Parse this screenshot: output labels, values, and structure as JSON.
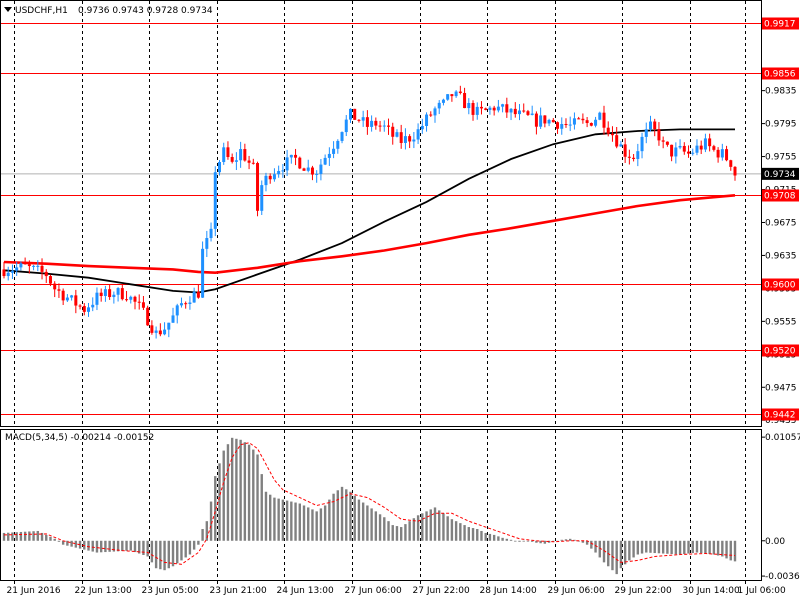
{
  "header": {
    "symbol": "USDCHF,H1",
    "ohlc": "0.9736 0.9743 0.9728 0.9734"
  },
  "macd_header": {
    "label": "MACD(5,34,5) -0.00214 -0.00152"
  },
  "colors": {
    "bull": "#1e90ff",
    "bear": "#ff0000",
    "level_line": "#ff0000",
    "ma_fast": "#000000",
    "ma_slow": "#ff0000",
    "histogram": "#808080",
    "signal": "#ff0000",
    "grid": "#000000",
    "price_badge": "#000000"
  },
  "chart_data": [
    {
      "type": "candlestick",
      "title": "USDCHF,H1",
      "x_ticks": [
        "21 Jun 2016",
        "22 Jun 13:00",
        "23 Jun 05:00",
        "23 Jun 21:00",
        "24 Jun 13:00",
        "27 Jun 06:00",
        "27 Jun 22:00",
        "28 Jun 14:00",
        "29 Jun 06:00",
        "29 Jun 22:00",
        "30 Jun 14:00",
        "1 Jul 06:00"
      ],
      "y_ticks": [
        "0.9835",
        "0.9795",
        "0.9755",
        "0.9715",
        "0.9675",
        "0.9635",
        "0.9595",
        "0.9555",
        "0.9515",
        "0.9475",
        "0.9435"
      ],
      "ylim": [
        0.9428,
        0.9945
      ],
      "horizontal_levels": [
        "0.9917",
        "0.9856",
        "0.9708",
        "0.9600",
        "0.9520",
        "0.9442"
      ],
      "current_price": "0.9734",
      "grid": "vertical dashed",
      "price_path": [
        [
          0,
          0.9618
        ],
        [
          5,
          0.9621
        ],
        [
          10,
          0.9612
        ],
        [
          12,
          0.9595
        ],
        [
          16,
          0.958
        ],
        [
          19,
          0.957
        ],
        [
          22,
          0.9584
        ],
        [
          26,
          0.959
        ],
        [
          29,
          0.9588
        ],
        [
          32,
          0.9572
        ],
        [
          34,
          0.9558
        ],
        [
          36,
          0.954
        ],
        [
          38,
          0.9547
        ],
        [
          40,
          0.956
        ],
        [
          42,
          0.9576
        ],
        [
          44,
          0.9585
        ],
        [
          46,
          0.959
        ],
        [
          47,
          0.964
        ],
        [
          49,
          0.966
        ],
        [
          50,
          0.974
        ],
        [
          52,
          0.976
        ],
        [
          54,
          0.9745
        ],
        [
          56,
          0.9762
        ],
        [
          57,
          0.9755
        ],
        [
          59,
          0.974
        ],
        [
          60,
          0.969
        ],
        [
          61,
          0.972
        ],
        [
          63,
          0.9735
        ],
        [
          66,
          0.9745
        ],
        [
          69,
          0.9752
        ],
        [
          72,
          0.974
        ],
        [
          74,
          0.9738
        ],
        [
          76,
          0.9755
        ],
        [
          78,
          0.977
        ],
        [
          80,
          0.979
        ],
        [
          82,
          0.9805
        ],
        [
          84,
          0.98
        ],
        [
          86,
          0.9792
        ],
        [
          88,
          0.9795
        ],
        [
          90,
          0.979
        ],
        [
          92,
          0.978
        ],
        [
          94,
          0.9774
        ],
        [
          96,
          0.9778
        ],
        [
          98,
          0.9786
        ],
        [
          100,
          0.98
        ],
        [
          102,
          0.9812
        ],
        [
          104,
          0.9818
        ],
        [
          106,
          0.983
        ],
        [
          108,
          0.9825
        ],
        [
          110,
          0.9815
        ],
        [
          112,
          0.9808
        ],
        [
          114,
          0.981
        ],
        [
          116,
          0.9815
        ],
        [
          118,
          0.9812
        ],
        [
          120,
          0.9808
        ],
        [
          122,
          0.9805
        ],
        [
          124,
          0.9802
        ],
        [
          126,
          0.9798
        ],
        [
          128,
          0.98
        ],
        [
          130,
          0.9797
        ],
        [
          132,
          0.9795
        ],
        [
          134,
          0.9792
        ],
        [
          136,
          0.9796
        ],
        [
          138,
          0.9795
        ],
        [
          140,
          0.9802
        ],
        [
          141,
          0.9806
        ],
        [
          143,
          0.979
        ],
        [
          145,
          0.9775
        ],
        [
          147,
          0.976
        ],
        [
          149,
          0.9755
        ],
        [
          151,
          0.9776
        ],
        [
          153,
          0.979
        ],
        [
          155,
          0.978
        ],
        [
          156,
          0.9768
        ],
        [
          158,
          0.976
        ],
        [
          160,
          0.9762
        ],
        [
          162,
          0.9758
        ],
        [
          164,
          0.9765
        ],
        [
          166,
          0.977
        ],
        [
          168,
          0.9762
        ],
        [
          170,
          0.9758
        ],
        [
          172,
          0.9748
        ],
        [
          173,
          0.9734
        ]
      ],
      "series": [
        {
          "kind": "ma",
          "values": [
            [
              0,
              0.9617
            ],
            [
              10,
              0.9613
            ],
            [
              20,
              0.9608
            ],
            [
              30,
              0.96
            ],
            [
              40,
              0.9592
            ],
            [
              46,
              0.959
            ],
            [
              50,
              0.9594
            ],
            [
              60,
              0.9612
            ],
            [
              70,
              0.963
            ],
            [
              80,
              0.965
            ],
            [
              90,
              0.9676
            ],
            [
              100,
              0.97
            ],
            [
              110,
              0.9728
            ],
            [
              120,
              0.9752
            ],
            [
              130,
              0.977
            ],
            [
              140,
              0.9782
            ],
            [
              150,
              0.9786
            ],
            [
              160,
              0.9788
            ],
            [
              173,
              0.9788
            ]
          ]
        },
        {
          "kind": "ma",
          "values": [
            [
              0,
              0.9627
            ],
            [
              10,
              0.9625
            ],
            [
              20,
              0.9622
            ],
            [
              30,
              0.962
            ],
            [
              40,
              0.9618
            ],
            [
              46,
              0.9615
            ],
            [
              50,
              0.9614
            ],
            [
              60,
              0.962
            ],
            [
              70,
              0.9628
            ],
            [
              80,
              0.9634
            ],
            [
              90,
              0.9641
            ],
            [
              100,
              0.965
            ],
            [
              110,
              0.966
            ],
            [
              120,
              0.9668
            ],
            [
              130,
              0.9677
            ],
            [
              140,
              0.9686
            ],
            [
              150,
              0.9695
            ],
            [
              160,
              0.9702
            ],
            [
              173,
              0.9708
            ]
          ]
        }
      ]
    },
    {
      "type": "bar",
      "title": "MACD(5,34,5) -0.00214 -0.00152",
      "y_ticks": [
        "0.01057",
        "0.00",
        "-0.0036"
      ],
      "ylim": [
        -0.004,
        0.0114
      ],
      "histogram": [
        [
          0,
          0.0008
        ],
        [
          8,
          0.001
        ],
        [
          12,
          0.0002
        ],
        [
          14,
          -0.0004
        ],
        [
          18,
          -0.0008
        ],
        [
          22,
          -0.0012
        ],
        [
          26,
          -0.0011
        ],
        [
          30,
          -0.001
        ],
        [
          34,
          -0.0016
        ],
        [
          36,
          -0.0028
        ],
        [
          38,
          -0.003
        ],
        [
          40,
          -0.0026
        ],
        [
          42,
          -0.002
        ],
        [
          44,
          -0.0014
        ],
        [
          46,
          -0.0004
        ],
        [
          47,
          0.0012
        ],
        [
          48,
          0.002
        ],
        [
          49,
          0.004
        ],
        [
          50,
          0.0066
        ],
        [
          52,
          0.0092
        ],
        [
          54,
          0.0105
        ],
        [
          56,
          0.0103
        ],
        [
          58,
          0.0098
        ],
        [
          60,
          0.0088
        ],
        [
          61,
          0.0068
        ],
        [
          62,
          0.005
        ],
        [
          64,
          0.0044
        ],
        [
          66,
          0.0042
        ],
        [
          68,
          0.004
        ],
        [
          70,
          0.0038
        ],
        [
          72,
          0.0034
        ],
        [
          74,
          0.003
        ],
        [
          76,
          0.0036
        ],
        [
          78,
          0.0048
        ],
        [
          80,
          0.0055
        ],
        [
          82,
          0.005
        ],
        [
          84,
          0.0042
        ],
        [
          86,
          0.0036
        ],
        [
          88,
          0.003
        ],
        [
          90,
          0.0024
        ],
        [
          92,
          0.0016
        ],
        [
          94,
          0.0014
        ],
        [
          96,
          0.002
        ],
        [
          98,
          0.0026
        ],
        [
          100,
          0.003
        ],
        [
          102,
          0.0034
        ],
        [
          104,
          0.0028
        ],
        [
          106,
          0.0022
        ],
        [
          108,
          0.0018
        ],
        [
          110,
          0.0014
        ],
        [
          112,
          0.0012
        ],
        [
          114,
          0.0008
        ],
        [
          116,
          0.0006
        ],
        [
          118,
          0.0003
        ],
        [
          120,
          0.0001
        ],
        [
          122,
          -0.0001
        ],
        [
          124,
          0.0
        ],
        [
          126,
          -0.0002
        ],
        [
          128,
          -0.0003
        ],
        [
          130,
          -0.0001
        ],
        [
          132,
          0.0001
        ],
        [
          134,
          0.0002
        ],
        [
          136,
          0.0
        ],
        [
          138,
          -0.0004
        ],
        [
          140,
          -0.0012
        ],
        [
          142,
          -0.0022
        ],
        [
          144,
          -0.003
        ],
        [
          145,
          -0.0034
        ],
        [
          146,
          -0.0028
        ],
        [
          148,
          -0.002
        ],
        [
          150,
          -0.0014
        ],
        [
          152,
          -0.0012
        ],
        [
          156,
          -0.0013
        ],
        [
          160,
          -0.0014
        ],
        [
          164,
          -0.0012
        ],
        [
          168,
          -0.0014
        ],
        [
          170,
          -0.0016
        ],
        [
          172,
          -0.002
        ],
        [
          173,
          -0.0021
        ]
      ],
      "signal": [
        [
          0,
          0.0006
        ],
        [
          10,
          0.0007
        ],
        [
          14,
          0.0
        ],
        [
          20,
          -0.0006
        ],
        [
          28,
          -0.001
        ],
        [
          34,
          -0.0012
        ],
        [
          38,
          -0.0022
        ],
        [
          42,
          -0.0024
        ],
        [
          46,
          -0.0012
        ],
        [
          48,
          0.0002
        ],
        [
          50,
          0.003
        ],
        [
          52,
          0.006
        ],
        [
          54,
          0.0085
        ],
        [
          56,
          0.0098
        ],
        [
          58,
          0.01
        ],
        [
          60,
          0.0094
        ],
        [
          62,
          0.0078
        ],
        [
          64,
          0.0062
        ],
        [
          66,
          0.0052
        ],
        [
          70,
          0.0044
        ],
        [
          74,
          0.0036
        ],
        [
          78,
          0.004
        ],
        [
          82,
          0.0048
        ],
        [
          86,
          0.0044
        ],
        [
          90,
          0.0034
        ],
        [
          94,
          0.0022
        ],
        [
          98,
          0.002
        ],
        [
          102,
          0.0028
        ],
        [
          106,
          0.0028
        ],
        [
          110,
          0.002
        ],
        [
          114,
          0.0014
        ],
        [
          118,
          0.0008
        ],
        [
          122,
          0.0002
        ],
        [
          126,
          0.0
        ],
        [
          130,
          -0.0001
        ],
        [
          134,
          0.0
        ],
        [
          138,
          0.0
        ],
        [
          142,
          -0.001
        ],
        [
          146,
          -0.0022
        ],
        [
          150,
          -0.002
        ],
        [
          154,
          -0.0016
        ],
        [
          160,
          -0.0014
        ],
        [
          166,
          -0.0013
        ],
        [
          173,
          -0.0015
        ]
      ]
    }
  ]
}
